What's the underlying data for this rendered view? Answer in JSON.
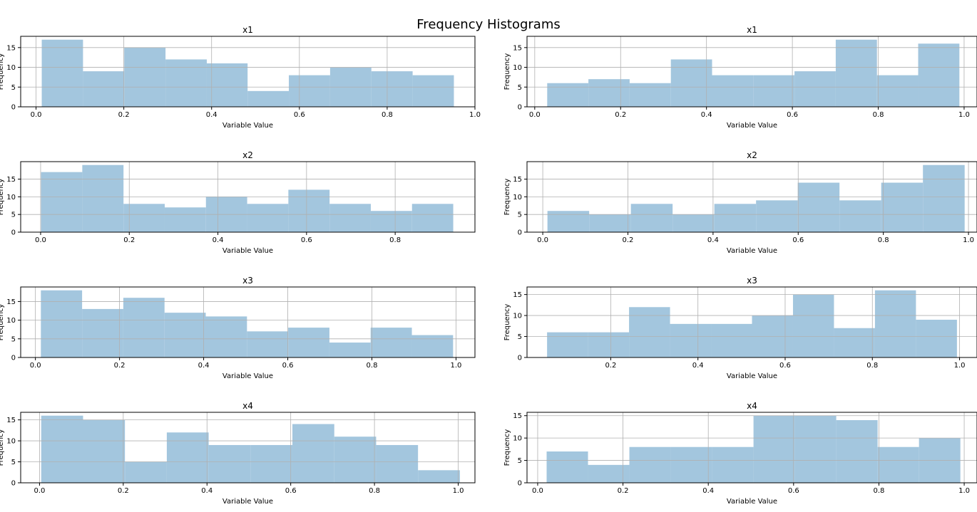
{
  "figure": {
    "title": "Frequency Histograms"
  },
  "colors": {
    "bar": "#a3c6de",
    "grid": "#b0b0b0",
    "axis": "#000000"
  },
  "chart_data": [
    {
      "type": "bar",
      "title": "x1",
      "xlabel": "Variable Value",
      "ylabel": "Frequency",
      "xlim": [
        -0.035,
        1.0
      ],
      "ylim": [
        0,
        17.85
      ],
      "xticks": [
        0.0,
        0.2,
        0.4,
        0.6,
        0.8,
        1.0
      ],
      "xtick_labels": [
        "0.0",
        "0.2",
        "0.4",
        "0.6",
        "0.8",
        "1.0"
      ],
      "yticks": [
        0,
        5,
        10,
        15
      ],
      "ytick_labels": [
        "0",
        "5",
        "10",
        "15"
      ],
      "grid": true,
      "bin_edges": [
        0.013,
        0.107,
        0.201,
        0.295,
        0.389,
        0.482,
        0.576,
        0.67,
        0.764,
        0.858,
        0.952
      ],
      "counts": [
        17,
        9,
        15,
        12,
        11,
        4,
        8,
        10,
        9,
        8
      ]
    },
    {
      "type": "bar",
      "title": "x1",
      "xlabel": "Variable Value",
      "ylabel": "Frequency",
      "xlim": [
        -0.018,
        1.03
      ],
      "ylim": [
        0,
        17.85
      ],
      "xticks": [
        0.0,
        0.2,
        0.4,
        0.6,
        0.8,
        1.0
      ],
      "xtick_labels": [
        "0.0",
        "0.2",
        "0.4",
        "0.6",
        "0.8",
        "1.0"
      ],
      "yticks": [
        0,
        5,
        10,
        15
      ],
      "ytick_labels": [
        "0",
        "5",
        "10",
        "15"
      ],
      "grid": true,
      "bin_edges": [
        0.029,
        0.125,
        0.221,
        0.317,
        0.413,
        0.509,
        0.605,
        0.701,
        0.797,
        0.893,
        0.989
      ],
      "counts": [
        6,
        7,
        6,
        12,
        8,
        8,
        9,
        17,
        8,
        16
      ]
    },
    {
      "type": "bar",
      "title": "x2",
      "xlabel": "Variable Value",
      "ylabel": "Frequency",
      "xlim": [
        -0.045,
        0.98
      ],
      "ylim": [
        0,
        19.95
      ],
      "xticks": [
        0.0,
        0.2,
        0.4,
        0.6,
        0.8
      ],
      "xtick_labels": [
        "0.0",
        "0.2",
        "0.4",
        "0.6",
        "0.8"
      ],
      "yticks": [
        0,
        5,
        10,
        15
      ],
      "ytick_labels": [
        "0",
        "5",
        "10",
        "15"
      ],
      "grid": true,
      "bin_edges": [
        0.001,
        0.094,
        0.187,
        0.28,
        0.373,
        0.466,
        0.559,
        0.652,
        0.745,
        0.838,
        0.931
      ],
      "counts": [
        17,
        19,
        8,
        7,
        10,
        8,
        12,
        8,
        6,
        8
      ]
    },
    {
      "type": "bar",
      "title": "x2",
      "xlabel": "Variable Value",
      "ylabel": "Frequency",
      "xlim": [
        -0.037,
        1.02
      ],
      "ylim": [
        0,
        19.95
      ],
      "xticks": [
        0.0,
        0.2,
        0.4,
        0.6,
        0.8,
        1.0
      ],
      "xtick_labels": [
        "0.0",
        "0.2",
        "0.4",
        "0.6",
        "0.8",
        "1.0"
      ],
      "yticks": [
        0,
        5,
        10,
        15
      ],
      "ytick_labels": [
        "0",
        "5",
        "10",
        "15"
      ],
      "grid": true,
      "bin_edges": [
        0.011,
        0.109,
        0.207,
        0.305,
        0.403,
        0.501,
        0.599,
        0.697,
        0.795,
        0.893,
        0.991
      ],
      "counts": [
        6,
        5,
        8,
        5,
        8,
        9,
        14,
        9,
        14,
        19
      ]
    },
    {
      "type": "bar",
      "title": "x3",
      "xlabel": "Variable Value",
      "ylabel": "Frequency",
      "xlim": [
        -0.035,
        1.045
      ],
      "ylim": [
        0,
        18.9
      ],
      "xticks": [
        0.0,
        0.2,
        0.4,
        0.6,
        0.8,
        1.0
      ],
      "xtick_labels": [
        "0.0",
        "0.2",
        "0.4",
        "0.6",
        "0.8",
        "1.0"
      ],
      "yticks": [
        0,
        5,
        10,
        15
      ],
      "ytick_labels": [
        "0",
        "5",
        "10",
        "15"
      ],
      "grid": true,
      "bin_edges": [
        0.013,
        0.111,
        0.209,
        0.307,
        0.405,
        0.503,
        0.601,
        0.699,
        0.797,
        0.895,
        0.993
      ],
      "counts": [
        18,
        13,
        16,
        12,
        11,
        7,
        8,
        4,
        8,
        6
      ]
    },
    {
      "type": "bar",
      "title": "x3",
      "xlabel": "Variable Value",
      "ylabel": "Frequency",
      "xlim": [
        0.008,
        1.04
      ],
      "ylim": [
        0,
        16.8
      ],
      "xticks": [
        0.2,
        0.4,
        0.6,
        0.8,
        1.0
      ],
      "xtick_labels": [
        "0.2",
        "0.4",
        "0.6",
        "0.8",
        "1.0"
      ],
      "yticks": [
        0,
        5,
        10,
        15
      ],
      "ytick_labels": [
        "0",
        "5",
        "10",
        "15"
      ],
      "grid": true,
      "bin_edges": [
        0.054,
        0.148,
        0.242,
        0.336,
        0.43,
        0.524,
        0.618,
        0.712,
        0.806,
        0.9,
        0.994
      ],
      "counts": [
        6,
        6,
        12,
        8,
        8,
        10,
        15,
        7,
        16,
        9
      ]
    },
    {
      "type": "bar",
      "title": "x4",
      "xlabel": "Variable Value",
      "ylabel": "Frequency",
      "xlim": [
        -0.045,
        1.04
      ],
      "ylim": [
        0,
        16.8
      ],
      "xticks": [
        0.0,
        0.2,
        0.4,
        0.6,
        0.8,
        1.0
      ],
      "xtick_labels": [
        "0.0",
        "0.2",
        "0.4",
        "0.6",
        "0.8",
        "1.0"
      ],
      "yticks": [
        0,
        5,
        10,
        15
      ],
      "ytick_labels": [
        "0",
        "5",
        "10",
        "15"
      ],
      "grid": true,
      "bin_edges": [
        0.004,
        0.104,
        0.204,
        0.304,
        0.404,
        0.504,
        0.604,
        0.704,
        0.804,
        0.904,
        1.004
      ],
      "counts": [
        16,
        15,
        5,
        12,
        9,
        9,
        14,
        11,
        9,
        3
      ]
    },
    {
      "type": "bar",
      "title": "x4",
      "xlabel": "Variable Value",
      "ylabel": "Frequency",
      "xlim": [
        -0.025,
        1.03
      ],
      "ylim": [
        0,
        15.75
      ],
      "xticks": [
        0.0,
        0.2,
        0.4,
        0.6,
        0.8,
        1.0
      ],
      "xtick_labels": [
        "0.0",
        "0.2",
        "0.4",
        "0.6",
        "0.8",
        "1.0"
      ],
      "yticks": [
        0,
        5,
        10,
        15
      ],
      "ytick_labels": [
        "0",
        "5",
        "10",
        "15"
      ],
      "grid": true,
      "bin_edges": [
        0.021,
        0.118,
        0.215,
        0.312,
        0.409,
        0.506,
        0.603,
        0.7,
        0.797,
        0.894,
        0.991
      ],
      "counts": [
        7,
        4,
        8,
        8,
        8,
        15,
        15,
        14,
        8,
        10
      ]
    }
  ]
}
